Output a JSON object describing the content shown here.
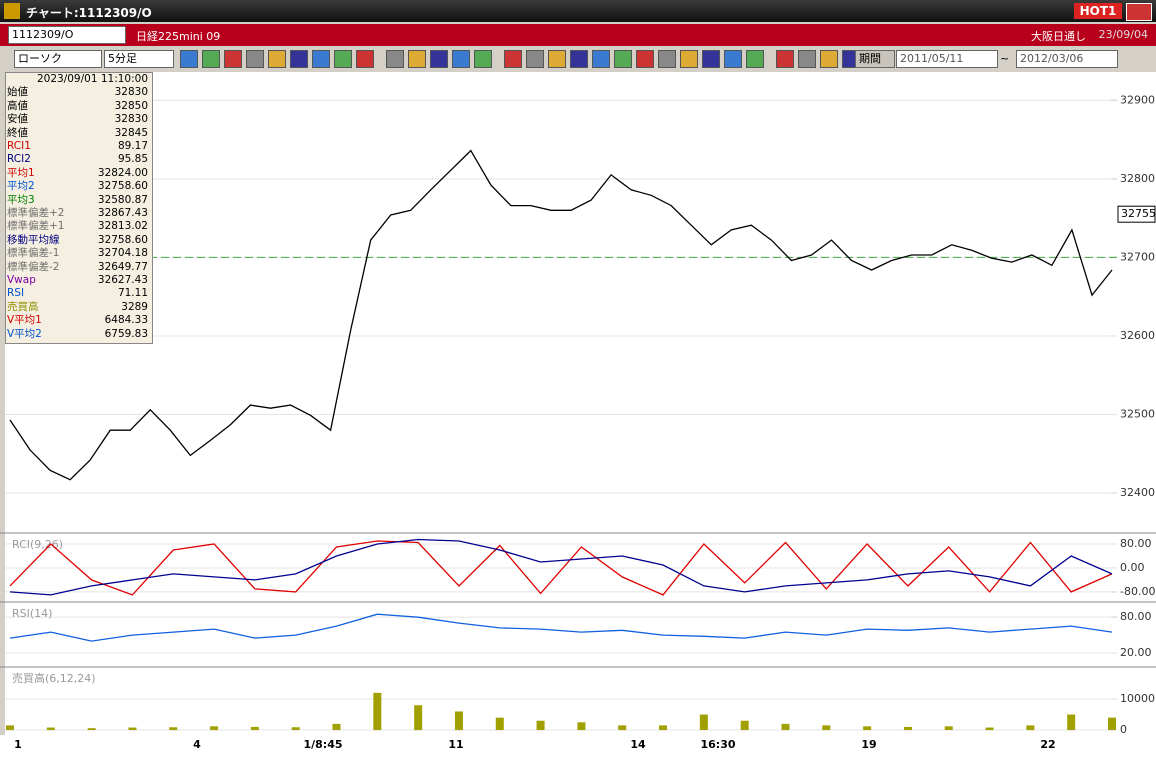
{
  "window": {
    "title": "チャート:1112309/O",
    "hot": "HOT1"
  },
  "toolbar": {
    "symbol": "1112309/O",
    "name": "日経225mini 09",
    "session": "大阪日通し",
    "date": "23/09/04",
    "chart_kind": "ローソク",
    "interval": "5分足",
    "period": "期間",
    "from": "2011/05/11",
    "tilde": "~",
    "to": "2012/03/06"
  },
  "info_panel": {
    "timestamp": "2023/09/01 11:10:00",
    "rows": [
      {
        "label": "始値",
        "value": "32830",
        "color": "#000000"
      },
      {
        "label": "高値",
        "value": "32850",
        "color": "#000000"
      },
      {
        "label": "安値",
        "value": "32830",
        "color": "#000000"
      },
      {
        "label": "終値",
        "value": "32845",
        "color": "#000000"
      },
      {
        "label": "RCI1",
        "value": "89.17",
        "color": "#d00000"
      },
      {
        "label": "RCI2",
        "value": "95.85",
        "color": "#000080"
      },
      {
        "label": "平均1",
        "value": "32824.00",
        "color": "#d00000"
      },
      {
        "label": "平均2",
        "value": "32758.60",
        "color": "#0050d0"
      },
      {
        "label": "平均3",
        "value": "32580.87",
        "color": "#008000"
      },
      {
        "label": "標準偏差+2",
        "value": "32867.43",
        "color": "#707070"
      },
      {
        "label": "標準偏差+1",
        "value": "32813.02",
        "color": "#707070"
      },
      {
        "label": "移動平均線",
        "value": "32758.60",
        "color": "#000080"
      },
      {
        "label": "標準偏差-1",
        "value": "32704.18",
        "color": "#707070"
      },
      {
        "label": "標準偏差-2",
        "value": "32649.77",
        "color": "#707070"
      },
      {
        "label": "Vwap",
        "value": "32627.43",
        "color": "#8000a0"
      },
      {
        "label": "RSI",
        "value": "71.11",
        "color": "#0050d0"
      },
      {
        "label": "売買高",
        "value": "3289",
        "color": "#909000"
      },
      {
        "label": "V平均1",
        "value": "6484.33",
        "color": "#d00000"
      },
      {
        "label": "V平均2",
        "value": "6759.83",
        "color": "#0050d0"
      }
    ]
  },
  "x_labels": [
    "1",
    "4",
    "1/8:45",
    "11",
    "14",
    "16:30",
    "19",
    "22"
  ],
  "chart_data": [
    {
      "type": "line",
      "ylim": [
        32353,
        32936
      ],
      "yticks": [
        32400,
        32500,
        32600,
        32700,
        32800,
        32900
      ],
      "current": 32755,
      "reference_line": 32700,
      "series": [
        {
          "name": "終値",
          "color": "#000000",
          "values": [
            32493,
            32455,
            32429,
            32417,
            32442,
            32480,
            32480,
            32506,
            32480,
            32448,
            32467,
            32487,
            32512,
            32508,
            32512,
            32499,
            32480,
            32607,
            32722,
            32754,
            32760,
            32786,
            32811,
            32836,
            32792,
            32766,
            32766,
            32760,
            32760,
            32773,
            32805,
            32786,
            32779,
            32766,
            32741,
            32716,
            32735,
            32741,
            32722,
            32696,
            32703,
            32722,
            32696,
            32684,
            32696,
            32703,
            32703,
            32716,
            32709,
            32699,
            32694,
            32703,
            32690,
            32735,
            32652,
            32684
          ]
        }
      ]
    },
    {
      "type": "line",
      "label": "RCI(9,26)",
      "ylim": [
        -107,
        110
      ],
      "yticks": [
        {
          "value": 80,
          "label": "80.00"
        },
        {
          "value": 0,
          "label": "0.00"
        },
        {
          "value": -80,
          "label": "-80.00"
        }
      ],
      "series": [
        {
          "name": "RCI1",
          "color": "#e00000",
          "values": [
            -60,
            80,
            -40,
            -90,
            60,
            80,
            -70,
            -80,
            70,
            90,
            85,
            -60,
            75,
            -85,
            70,
            -30,
            -90,
            80,
            -50,
            85,
            -70,
            80,
            -60,
            70,
            -80,
            85,
            -80,
            -20
          ]
        },
        {
          "name": "RCI2",
          "color": "#000090",
          "values": [
            -80,
            -90,
            -60,
            -40,
            -20,
            -30,
            -40,
            -20,
            40,
            80,
            95,
            90,
            60,
            20,
            30,
            40,
            10,
            -60,
            -80,
            -60,
            -50,
            -40,
            -20,
            -10,
            -30,
            -60,
            40,
            -20
          ]
        }
      ]
    },
    {
      "type": "line",
      "label": "RSI(14)",
      "ylim": [
        0,
        102
      ],
      "yticks": [
        {
          "value": 80,
          "label": "80.00"
        },
        {
          "value": 20,
          "label": "20.00"
        }
      ],
      "series": [
        {
          "name": "RSI",
          "color": "#1060e0",
          "values": [
            45,
            55,
            40,
            50,
            55,
            60,
            45,
            50,
            65,
            85,
            80,
            70,
            62,
            60,
            55,
            58,
            50,
            48,
            45,
            55,
            50,
            60,
            58,
            62,
            55,
            60,
            65,
            55
          ]
        }
      ]
    },
    {
      "type": "bar",
      "label": "売買高(6,12,24)",
      "ylim": [
        -1600,
        19700
      ],
      "yticks": [
        10000,
        0
      ],
      "color": "#a0a000",
      "values": [
        1500,
        800,
        600,
        800,
        900,
        1200,
        1000,
        900,
        2000,
        12000,
        8000,
        6000,
        4000,
        3000,
        2500,
        1500,
        1500,
        5000,
        3000,
        2000,
        1500,
        1200,
        1000,
        1200,
        800,
        1500,
        5000,
        4000
      ]
    }
  ]
}
